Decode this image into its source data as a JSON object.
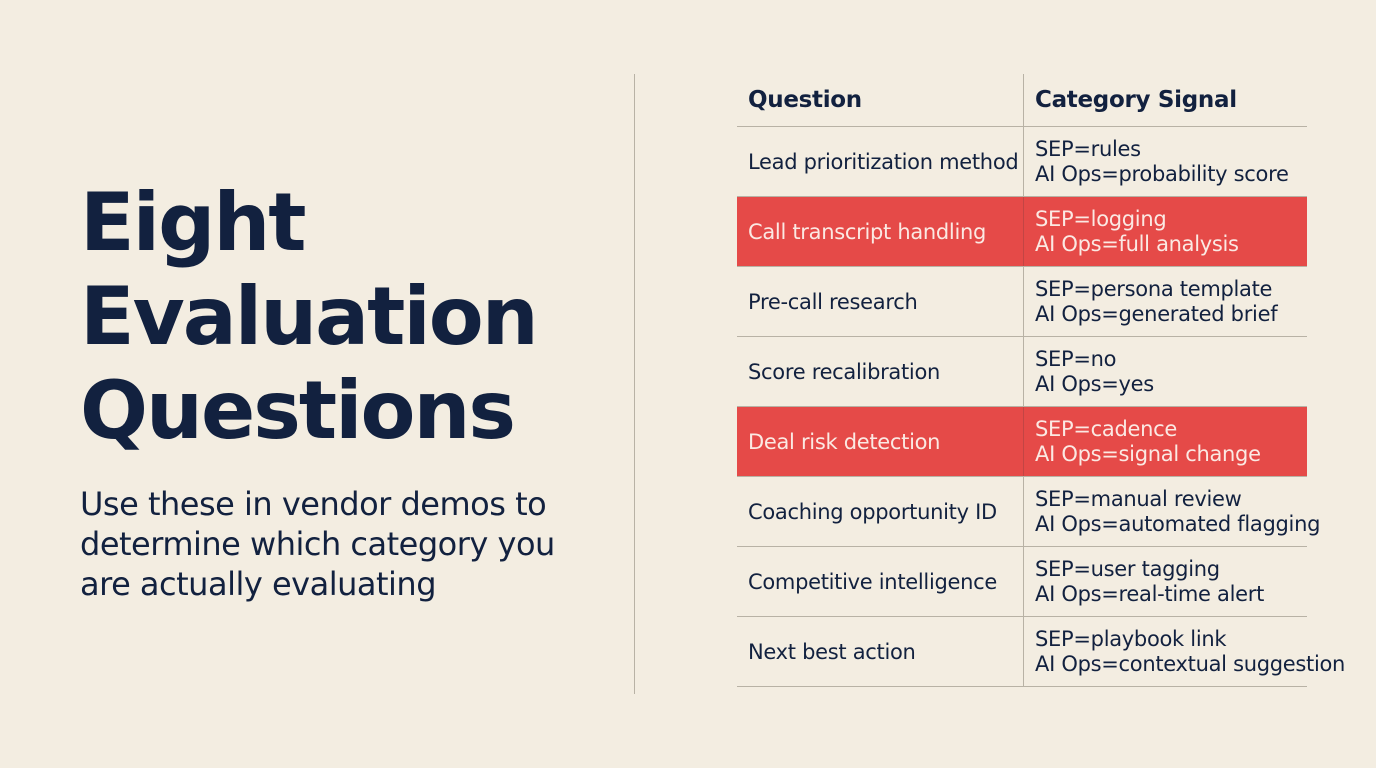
{
  "title_lines": [
    "Eight",
    "Evaluation",
    "Questions"
  ],
  "subtitle": "Use these in vendor demos to determine which category you are actually evaluating",
  "table": {
    "headers": [
      "Question",
      "Category Signal"
    ],
    "rows": [
      {
        "question": "Lead prioritization method",
        "signal": [
          "SEP=rules",
          "AI Ops=probability score"
        ],
        "highlight": false
      },
      {
        "question": "Call transcript handling",
        "signal": [
          "SEP=logging",
          "AI Ops=full analysis"
        ],
        "highlight": true
      },
      {
        "question": "Pre-call research",
        "signal": [
          "SEP=persona template",
          "AI Ops=generated brief"
        ],
        "highlight": false
      },
      {
        "question": "Score recalibration",
        "signal": [
          "SEP=no",
          "AI Ops=yes"
        ],
        "highlight": false
      },
      {
        "question": "Deal risk detection",
        "signal": [
          "SEP=cadence",
          "AI Ops=signal change"
        ],
        "highlight": true
      },
      {
        "question": "Coaching opportunity ID",
        "signal": [
          "SEP=manual review",
          "AI Ops=automated flagging"
        ],
        "highlight": false
      },
      {
        "question": "Competitive intelligence",
        "signal": [
          "SEP=user tagging",
          "AI Ops=real-time alert"
        ],
        "highlight": false
      },
      {
        "question": "Next best action",
        "signal": [
          "SEP=playbook link",
          "AI Ops=contextual suggestion"
        ],
        "highlight": false
      }
    ]
  },
  "colors": {
    "background": "#f3ede1",
    "text": "#12213f",
    "highlight": "#e54a48",
    "rule": "#b8b2a5"
  }
}
